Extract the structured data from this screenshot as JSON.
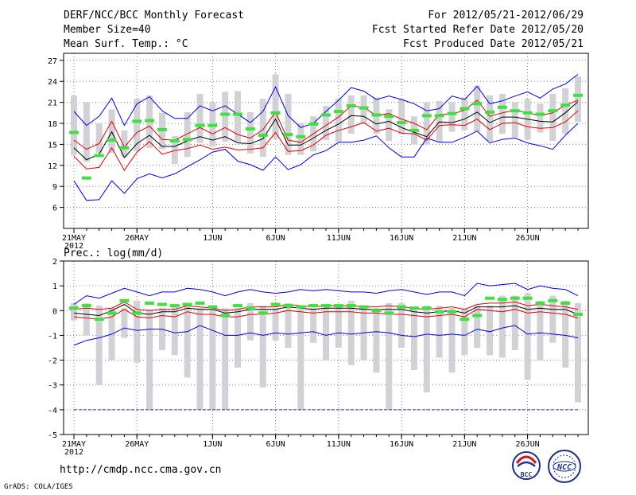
{
  "header": {
    "title": "DERF/NCC/BCC Monthly Forecast",
    "member_size": "Member Size=40",
    "variable": "Mean Surf. Temp.: °C",
    "period": "For 2012/05/21-2012/06/29",
    "started": "Fcst Started Refer Date 2012/05/20",
    "produced": "Fcst Produced Date 2012/05/21"
  },
  "footer": {
    "url": "http://cmdp.ncc.cma.gov.cn",
    "credit": "GrADS: COLA/IGES",
    "logo_bcc": "BCC",
    "logo_ncc": "NCC"
  },
  "colors": {
    "bar": "#d2d2d6",
    "obs": "#40e040",
    "mean": "#000000",
    "spread": "#e00000",
    "extreme": "#0000e0",
    "grid": "#808080"
  },
  "chart_data": [
    {
      "type": "line",
      "title": "Mean Surf. Temp.: °C",
      "ylabel": "°C",
      "ylim": [
        3,
        28
      ],
      "yticks": [
        6,
        9,
        12,
        15,
        18,
        21,
        24,
        27
      ],
      "xticks": [
        "21MAY",
        "26MAY",
        "1JUN",
        "6JUN",
        "11JUN",
        "16JUN",
        "21JUN",
        "26JUN"
      ],
      "xtick_index": [
        0,
        5,
        11,
        16,
        21,
        26,
        31,
        36
      ],
      "year_label": "2012",
      "days": 40,
      "series": [
        {
          "name": "max",
          "values": [
            9.8,
            7.0,
            7.1,
            9.8,
            8.0,
            10.1,
            10.8,
            10.2,
            10.8,
            11.8,
            12.8,
            13.9,
            14.3,
            12.6,
            12.1,
            11.3,
            13.2,
            11.4,
            12.1,
            13.5,
            14.1,
            15.3,
            15.3,
            15.6,
            16.2,
            14.5,
            13.2,
            13.2,
            15.9,
            15.3,
            15.3,
            16.0,
            16.9,
            15.2,
            15.7,
            15.9,
            15.2,
            14.8,
            14.3,
            16.3,
            18.0
          ]
        },
        {
          "name": "min",
          "values": [
            19.7,
            17.7,
            19.0,
            21.6,
            17.7,
            20.8,
            21.8,
            19.8,
            18.7,
            18.7,
            20.5,
            19.8,
            20.5,
            19.3,
            18.1,
            19.7,
            23.2,
            19.1,
            17.4,
            18.0,
            19.7,
            21.3,
            23.1,
            22.6,
            21.4,
            21.9,
            21.4,
            20.8,
            19.8,
            20.1,
            21.9,
            21.4,
            23.3,
            20.8,
            21.2,
            21.9,
            22.5,
            21.6,
            22.9,
            23.6,
            25.0
          ]
        },
        {
          "name": "upper",
          "values": [
            15.6,
            14.3,
            15.1,
            18.3,
            14.6,
            16.7,
            17.6,
            15.7,
            15.6,
            16.5,
            17.4,
            16.5,
            17.4,
            16.4,
            15.9,
            17.1,
            19.6,
            15.6,
            15.3,
            16.5,
            17.7,
            18.9,
            20.5,
            20.3,
            19.1,
            19.4,
            18.6,
            18.0,
            17.1,
            19.3,
            19.3,
            19.9,
            21.3,
            19.0,
            19.5,
            19.9,
            19.5,
            19.1,
            19.5,
            20.6,
            21.3
          ]
        },
        {
          "name": "mean",
          "values": [
            14.5,
            12.8,
            13.6,
            16.8,
            13.1,
            15.1,
            16.3,
            14.7,
            14.7,
            15.5,
            16.1,
            15.6,
            16.1,
            15.2,
            15.1,
            15.8,
            18.6,
            14.9,
            14.9,
            15.9,
            17.0,
            17.9,
            19.1,
            19.0,
            17.9,
            18.3,
            17.4,
            16.7,
            16.1,
            18.2,
            18.1,
            18.6,
            19.6,
            18.1,
            18.9,
            18.9,
            18.6,
            18.3,
            18.2,
            19.5,
            21.1
          ]
        },
        {
          "name": "lower",
          "values": [
            13.3,
            11.5,
            11.7,
            14.5,
            11.3,
            13.9,
            15.4,
            13.6,
            14.1,
            14.4,
            14.9,
            14.3,
            14.6,
            14.2,
            14.3,
            14.5,
            16.7,
            14.0,
            14.1,
            14.9,
            16.3,
            17.0,
            17.5,
            18.1,
            16.9,
            17.3,
            16.6,
            16.5,
            15.6,
            17.7,
            17.8,
            17.7,
            18.6,
            17.1,
            18.0,
            18.1,
            17.5,
            17.3,
            17.4,
            18.2,
            19.8
          ]
        }
      ],
      "obs": [
        16.7,
        10.2,
        13.4,
        15.6,
        14.5,
        18.3,
        18.4,
        17.1,
        15.5,
        15.7,
        17.7,
        17.7,
        19.3,
        19.3,
        17.2,
        16.3,
        19.5,
        16.4,
        16.1,
        17.9,
        19.2,
        19.7,
        20.5,
        20.2,
        19.2,
        19.0,
        18.1,
        17.0,
        19.1,
        19.1,
        19.4,
        20.1,
        20.8,
        19.6,
        20.3,
        19.8,
        19.5,
        19.3,
        19.8,
        20.6,
        22.0
      ],
      "bars": [
        [
          13.5,
          22
        ],
        [
          12.5,
          21
        ],
        [
          13.8,
          18
        ],
        [
          13.8,
          20
        ],
        [
          13.2,
          17
        ],
        [
          14,
          21.5
        ],
        [
          14.5,
          22
        ],
        [
          14.3,
          19.5
        ],
        [
          12.2,
          16.2
        ],
        [
          13.2,
          19.6
        ],
        [
          15.2,
          22.2
        ],
        [
          14.7,
          21
        ],
        [
          15.4,
          22.5
        ],
        [
          15.3,
          22.6
        ],
        [
          13.7,
          19.6
        ],
        [
          13.2,
          21.5
        ],
        [
          15.8,
          25
        ],
        [
          13.5,
          22.2
        ],
        [
          13.5,
          18
        ],
        [
          14,
          19
        ],
        [
          15.6,
          20.5
        ],
        [
          15.4,
          21.5
        ],
        [
          16.5,
          22
        ],
        [
          18,
          22
        ],
        [
          16.5,
          21.7
        ],
        [
          15.5,
          20
        ],
        [
          16.4,
          21.5
        ],
        [
          15,
          19
        ],
        [
          15,
          21
        ],
        [
          15.3,
          21.2
        ],
        [
          16.8,
          21
        ],
        [
          17,
          21.7
        ],
        [
          16.8,
          23.4
        ],
        [
          15.4,
          22
        ],
        [
          16.5,
          22.2
        ],
        [
          16,
          21
        ],
        [
          15.7,
          21.5
        ],
        [
          16.7,
          20.8
        ],
        [
          15.5,
          22.2
        ],
        [
          16.5,
          23
        ],
        [
          18.2,
          24.7
        ]
      ]
    },
    {
      "type": "line",
      "title": "Prec.: log(mm/d)",
      "ylabel": "log(mm/d)",
      "ylim": [
        -5,
        2
      ],
      "yticks": [
        -5,
        -4,
        -3,
        -2,
        -1,
        0,
        1,
        2
      ],
      "xticks": [
        "21MAY",
        "26MAY",
        "1JUN",
        "6JUN",
        "11JUN",
        "16JUN",
        "21JUN",
        "26JUN"
      ],
      "xtick_index": [
        0,
        5,
        11,
        16,
        21,
        26,
        31,
        36
      ],
      "year_label": "2012",
      "days": 40,
      "floor": -4,
      "series": [
        {
          "name": "max",
          "values": [
            0.25,
            0.6,
            0.5,
            0.7,
            0.9,
            0.75,
            0.6,
            0.75,
            0.75,
            0.9,
            0.85,
            0.75,
            0.6,
            0.75,
            0.85,
            0.75,
            0.7,
            0.75,
            0.85,
            0.8,
            0.85,
            0.8,
            0.75,
            0.75,
            0.7,
            0.8,
            0.85,
            0.75,
            0.65,
            0.75,
            0.75,
            0.6,
            1.1,
            1.0,
            1.05,
            1.1,
            0.85,
            1.0,
            0.9,
            0.85,
            0.6
          ]
        },
        {
          "name": "upper",
          "values": [
            0.05,
            0.1,
            0.05,
            0.1,
            0.35,
            0.05,
            0.0,
            0.05,
            0.05,
            0.2,
            0.15,
            0.1,
            0.0,
            0.05,
            0.15,
            0.15,
            0.15,
            0.25,
            0.2,
            0.15,
            0.2,
            0.2,
            0.2,
            0.15,
            0.15,
            0.2,
            0.15,
            0.1,
            0.05,
            0.1,
            0.15,
            0.05,
            0.25,
            0.3,
            0.3,
            0.35,
            0.2,
            0.25,
            0.2,
            0.15,
            0.05
          ]
        },
        {
          "name": "mean",
          "values": [
            -0.1,
            -0.15,
            -0.2,
            0.0,
            0.25,
            -0.1,
            -0.15,
            -0.05,
            -0.05,
            0.1,
            0.05,
            0.05,
            -0.1,
            -0.05,
            0.05,
            0.05,
            0.05,
            0.15,
            0.1,
            0.05,
            0.1,
            0.1,
            0.1,
            0.05,
            0.05,
            0.05,
            0.05,
            -0.05,
            -0.1,
            -0.05,
            0.0,
            -0.1,
            0.15,
            0.15,
            0.15,
            0.2,
            0.05,
            0.1,
            0.05,
            0.05,
            -0.15
          ]
        },
        {
          "name": "lower",
          "values": [
            -0.25,
            -0.3,
            -0.35,
            -0.25,
            0.05,
            -0.25,
            -0.3,
            -0.2,
            -0.25,
            -0.05,
            -0.15,
            -0.15,
            -0.25,
            -0.25,
            -0.15,
            -0.15,
            -0.1,
            0.0,
            -0.05,
            -0.1,
            -0.05,
            -0.05,
            -0.05,
            -0.1,
            -0.1,
            -0.15,
            -0.15,
            -0.2,
            -0.25,
            -0.2,
            -0.15,
            -0.25,
            0.05,
            0.0,
            -0.05,
            0.05,
            -0.1,
            -0.05,
            -0.1,
            -0.15,
            -0.3
          ]
        },
        {
          "name": "min",
          "values": [
            -1.4,
            -1.2,
            -1.1,
            -0.95,
            -0.7,
            -0.8,
            -0.75,
            -0.75,
            -0.9,
            -0.85,
            -0.6,
            -0.8,
            -1.0,
            -1.0,
            -0.9,
            -1.0,
            -0.9,
            -0.95,
            -0.9,
            -0.85,
            -1.0,
            -0.9,
            -0.95,
            -0.9,
            -0.85,
            -0.9,
            -1.0,
            -1.05,
            -0.95,
            -1.0,
            -0.95,
            -1.0,
            -0.75,
            -0.85,
            -0.7,
            -0.6,
            -0.95,
            -0.9,
            -0.95,
            -1.0,
            -1.1
          ]
        }
      ],
      "obs": [
        0.1,
        0.2,
        -0.35,
        -0.1,
        0.4,
        -0.1,
        0.3,
        0.25,
        0.2,
        0.25,
        0.3,
        0.15,
        -0.2,
        0.2,
        0.1,
        -0.1,
        0.25,
        0.2,
        0.15,
        0.2,
        0.2,
        0.2,
        0.2,
        0.15,
        0.0,
        -0.1,
        0.15,
        0.1,
        0.1,
        -0.05,
        -0.05,
        -0.35,
        -0.2,
        0.5,
        0.45,
        0.5,
        0.5,
        0.3,
        0.4,
        0.3,
        -0.15
      ],
      "bars": [
        [
          -0.4,
          0.3
        ],
        [
          -1.0,
          0.3
        ],
        [
          -3.0,
          0.2
        ],
        [
          -2.0,
          0.1
        ],
        [
          -1.1,
          0.1
        ],
        [
          -2.1,
          0.4
        ],
        [
          -4.0,
          0.05
        ],
        [
          -1.6,
          0.1
        ],
        [
          -1.8,
          0.2
        ],
        [
          -2.7,
          0.3
        ],
        [
          -4.0,
          0.1
        ],
        [
          -4.0,
          0.05
        ],
        [
          -4.0,
          0.1
        ],
        [
          -2.3,
          0.1
        ],
        [
          -1.2,
          0.3
        ],
        [
          -3.1,
          0.2
        ],
        [
          -1.2,
          0.1
        ],
        [
          -1.5,
          0.3
        ],
        [
          -4.0,
          0.2
        ],
        [
          -1.3,
          0.1
        ],
        [
          -2.0,
          0.2
        ],
        [
          -1.5,
          0.2
        ],
        [
          -2.2,
          0.4
        ],
        [
          -2.0,
          0.2
        ],
        [
          -2.5,
          0.1
        ],
        [
          -4.0,
          0.3
        ],
        [
          -1.5,
          0.3
        ],
        [
          -2.4,
          0.1
        ],
        [
          -3.3,
          0.2
        ],
        [
          -1.9,
          0.2
        ],
        [
          -2.5,
          0.1
        ],
        [
          -1.8,
          0.1
        ],
        [
          -1.5,
          0.2
        ],
        [
          -1.8,
          0.2
        ],
        [
          -1.9,
          0.6
        ],
        [
          -1.6,
          0.6
        ],
        [
          -2.8,
          0.7
        ],
        [
          -2.0,
          0.4
        ],
        [
          -1.3,
          0.6
        ],
        [
          -2.3,
          0.4
        ],
        [
          -3.7,
          0.3
        ]
      ]
    }
  ]
}
